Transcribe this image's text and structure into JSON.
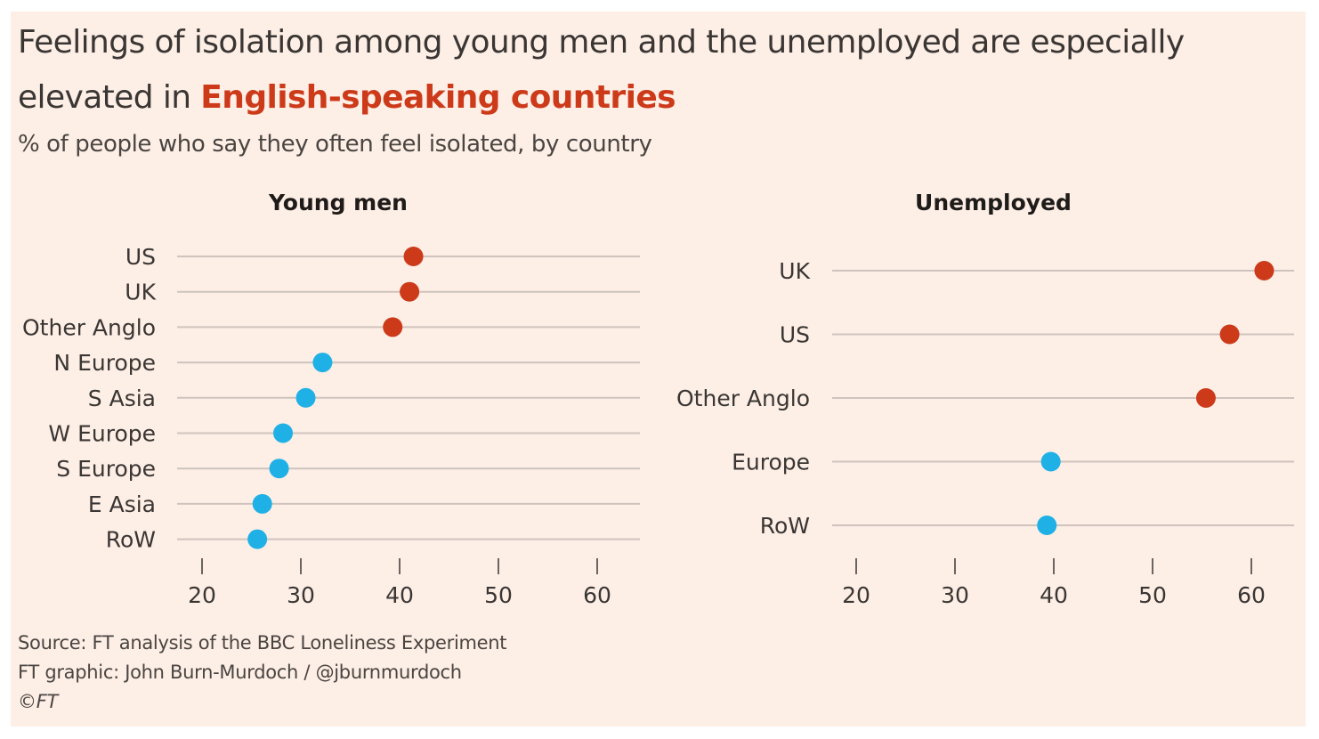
{
  "title": {
    "line1": "Feelings of isolation among young men and the unemployed are especially",
    "line2_plain": "elevated in ",
    "line2_highlight": "English-speaking countries"
  },
  "subtitle": "% of people who say they often feel isolated, by country",
  "footer": {
    "source": "Source: FT analysis of the BBC Loneliness Experiment",
    "credit": "FT graphic: John Burn-Murdoch / @jburnmurdoch",
    "copyright": "©FT"
  },
  "colors": {
    "background": "#fdeee6",
    "anglo": "#cc3a1a",
    "other": "#1fb1e6",
    "gridline": "#cfc4bd",
    "text": "#3a3633"
  },
  "chart_data": [
    {
      "type": "scatter",
      "title": "Young men",
      "xlabel": "",
      "ylabel": "",
      "xlim": [
        17.5,
        64.3
      ],
      "xticks": [
        20,
        30,
        40,
        50,
        60
      ],
      "categories": [
        "US",
        "UK",
        "Other Anglo",
        "N Europe",
        "S Asia",
        "W Europe",
        "S Europe",
        "E Asia",
        "RoW"
      ],
      "values": [
        41.4,
        41.0,
        39.3,
        32.2,
        30.5,
        28.2,
        27.8,
        26.1,
        25.6
      ],
      "groups": [
        "anglo",
        "anglo",
        "anglo",
        "other",
        "other",
        "other",
        "other",
        "other",
        "other"
      ]
    },
    {
      "type": "scatter",
      "title": "Unemployed",
      "xlabel": "",
      "ylabel": "",
      "xlim": [
        17.5,
        64.3
      ],
      "xticks": [
        20,
        30,
        40,
        50,
        60
      ],
      "categories": [
        "UK",
        "US",
        "Other Anglo",
        "Europe",
        "RoW"
      ],
      "values": [
        61.3,
        57.8,
        55.4,
        39.7,
        39.3
      ],
      "groups": [
        "anglo",
        "anglo",
        "anglo",
        "other",
        "other"
      ]
    }
  ]
}
